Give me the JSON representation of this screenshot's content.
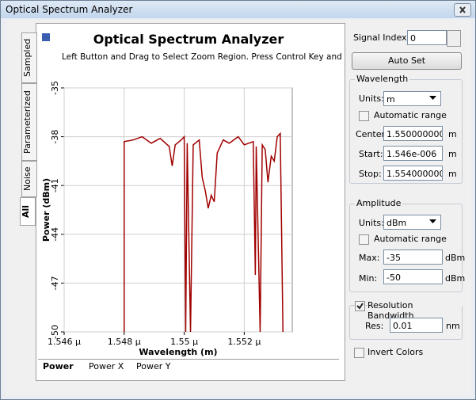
{
  "window": {
    "title": "Optical Spectrum Analyzer"
  },
  "side_tabs": [
    "Sampled",
    "Parameterized",
    "Noise",
    "All"
  ],
  "chart_data": {
    "type": "line",
    "title": "Optical Spectrum Analyzer",
    "subtitle": "Left Button and Drag to Select Zoom Region. Press Control Key and Left",
    "x_label": "Wavelength (m)",
    "y_label": "Power (dBm)",
    "x": [
      1.548e-06,
      1.548e-06,
      1.5483e-06,
      1.5486e-06,
      1.5489e-06,
      1.5492e-06,
      1.5495e-06,
      1.5496e-06,
      1.5497e-06,
      1.5499e-06,
      1.55e-06,
      1.55005e-06,
      1.5501e-06,
      1.55021e-06,
      1.5503e-06,
      1.5505e-06,
      1.5506e-06,
      1.5507e-06,
      1.5508e-06,
      1.5509e-06,
      1.551e-06,
      1.5511e-06,
      1.5513e-06,
      1.5515e-06,
      1.5518e-06,
      1.552e-06,
      1.5523e-06,
      1.55237e-06,
      1.5524e-06,
      1.55253e-06,
      1.5526e-06,
      1.5527e-06,
      1.55279e-06,
      1.5529e-06,
      1.553e-06,
      1.5531e-06,
      1.5532e-06,
      1.55329e-06
    ],
    "values": [
      -50,
      -38.3,
      -38.2,
      -38,
      -38.4,
      -38.1,
      -38.6,
      -39.8,
      -38.5,
      -38.2,
      -38,
      -50,
      -38.4,
      -50,
      -38.5,
      -38.2,
      -40.5,
      -41.3,
      -42.4,
      -41.6,
      -42,
      -39,
      -38.2,
      -38.4,
      -38,
      -38.5,
      -38.3,
      -46.5,
      -38.6,
      -50,
      -38.5,
      -38.8,
      -40.8,
      -39.2,
      -39.5,
      -38,
      -37.8,
      -50
    ],
    "color": "#a00000",
    "xlim": [
      1.546e-06,
      1.5536e-06
    ],
    "ylim": [
      -50,
      -35
    ],
    "xticks": [
      {
        "value": 1.546e-06,
        "label": "1.546 µ"
      },
      {
        "value": 1.548e-06,
        "label": "1.548 µ"
      },
      {
        "value": 1.55e-06,
        "label": "1.55 µ"
      },
      {
        "value": 1.552e-06,
        "label": "1.552 µ"
      }
    ],
    "yticks": [
      -35,
      -38,
      -41,
      -44,
      -47,
      -50
    ],
    "grid": true
  },
  "bottom_tabs": [
    "Power",
    "Power X",
    "Power Y"
  ],
  "controls": {
    "signal_index_label": "Signal Index:",
    "signal_index": "0",
    "auto_set": "Auto Set",
    "wavelength": {
      "title": "Wavelength",
      "units_label": "Units:",
      "units": "m",
      "auto_range": "Automatic range",
      "center_label": "Center:",
      "center": "1.5500000000",
      "center_unit": "m",
      "start_label": "Start:",
      "start": "1.546e-006",
      "start_unit": "m",
      "stop_label": "Stop:",
      "stop": "1.5540000000",
      "stop_unit": "m"
    },
    "amplitude": {
      "title": "Amplitude",
      "units_label": "Units:",
      "units": "dBm",
      "auto_range": "Automatic range",
      "max_label": "Max:",
      "max": "-35",
      "max_unit": "dBm",
      "min_label": "Min:",
      "min": "-50",
      "min_unit": "dBm"
    },
    "resolution": {
      "title": "Resolution Bandwidth",
      "res_label": "Res:",
      "res": "0.01",
      "res_unit": "nm"
    },
    "invert": "Invert Colors"
  }
}
